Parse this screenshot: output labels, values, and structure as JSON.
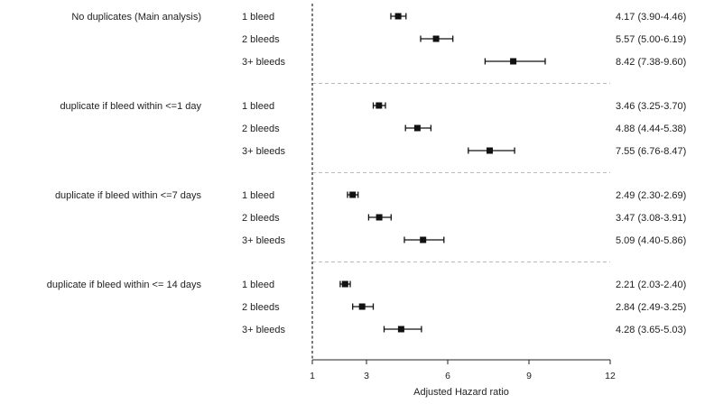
{
  "chart_data": {
    "type": "forest",
    "xlabel": "Adjusted Hazard ratio",
    "xlim": [
      1,
      12
    ],
    "xticks": [
      "1",
      "3",
      "6",
      "9",
      "12"
    ],
    "reference_line": 1,
    "groups": [
      {
        "label": "No duplicates (Main analysis)",
        "rows": [
          {
            "label": "1 bleed",
            "hr": 4.17,
            "lo": 3.9,
            "hi": 4.46,
            "ci_text": "4.17 (3.90-4.46)"
          },
          {
            "label": "2 bleeds",
            "hr": 5.57,
            "lo": 5.0,
            "hi": 6.19,
            "ci_text": "5.57 (5.00-6.19)"
          },
          {
            "label": "3+ bleeds",
            "hr": 8.42,
            "lo": 7.38,
            "hi": 9.6,
            "ci_text": "8.42 (7.38-9.60)"
          }
        ]
      },
      {
        "label": "duplicate if bleed within <=1 day",
        "rows": [
          {
            "label": "1 bleed",
            "hr": 3.46,
            "lo": 3.25,
            "hi": 3.7,
            "ci_text": "3.46 (3.25-3.70)"
          },
          {
            "label": "2 bleeds",
            "hr": 4.88,
            "lo": 4.44,
            "hi": 5.38,
            "ci_text": "4.88 (4.44-5.38)"
          },
          {
            "label": "3+ bleeds",
            "hr": 7.55,
            "lo": 6.76,
            "hi": 8.47,
            "ci_text": "7.55 (6.76-8.47)"
          }
        ]
      },
      {
        "label": "duplicate if bleed within <=7 days",
        "rows": [
          {
            "label": "1 bleed",
            "hr": 2.49,
            "lo": 2.3,
            "hi": 2.69,
            "ci_text": "2.49 (2.30-2.69)"
          },
          {
            "label": "2 bleeds",
            "hr": 3.47,
            "lo": 3.08,
            "hi": 3.91,
            "ci_text": "3.47 (3.08-3.91)"
          },
          {
            "label": "3+ bleeds",
            "hr": 5.09,
            "lo": 4.4,
            "hi": 5.86,
            "ci_text": "5.09 (4.40-5.86)"
          }
        ]
      },
      {
        "label": "duplicate if bleed within <= 14 days",
        "rows": [
          {
            "label": "1 bleed",
            "hr": 2.21,
            "lo": 2.03,
            "hi": 2.4,
            "ci_text": "2.21 (2.03-2.40)"
          },
          {
            "label": "2 bleeds",
            "hr": 2.84,
            "lo": 2.49,
            "hi": 3.25,
            "ci_text": "2.84 (2.49-3.25)"
          },
          {
            "label": "3+ bleeds",
            "hr": 4.28,
            "lo": 3.65,
            "hi": 5.03,
            "ci_text": "4.28 (3.65-5.03)"
          }
        ]
      }
    ],
    "colors": {
      "marker": "#111111",
      "ci": "#111111",
      "reference": "#222222",
      "separator": "#bbbbbb"
    }
  }
}
